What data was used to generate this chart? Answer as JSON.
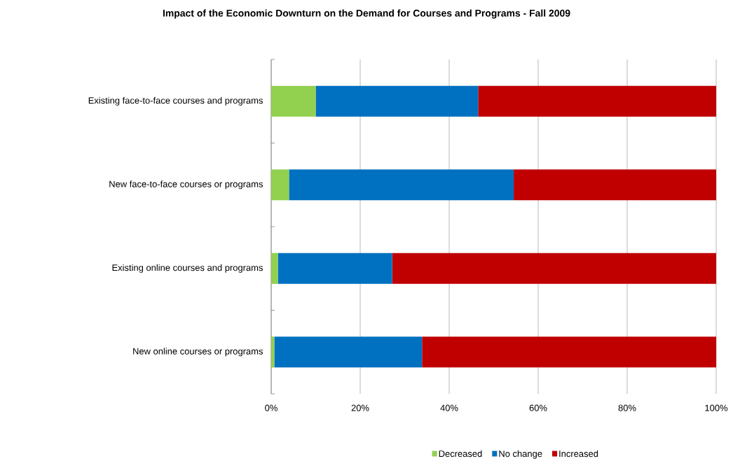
{
  "chart_data": {
    "type": "bar",
    "orientation": "horizontal",
    "stacked": true,
    "title": "Impact of the Economic Downturn on the Demand for Courses and Programs - Fall 2009",
    "categories": [
      "Existing face-to-face courses and programs",
      "New face-to-face courses or programs",
      "Existing online courses and programs",
      "New online courses or programs"
    ],
    "series": [
      {
        "name": "Decreased",
        "color": "#92d050",
        "values": [
          10,
          4,
          1.5,
          0.7
        ]
      },
      {
        "name": "No change",
        "color": "#0070c0",
        "values": [
          36.5,
          50.5,
          25.7,
          33.2
        ]
      },
      {
        "name": "Increased",
        "color": "#c00000",
        "values": [
          53.5,
          45.5,
          72.8,
          66.1
        ]
      }
    ],
    "xlim": [
      0,
      100
    ],
    "xticks": [
      {
        "value": 0,
        "label": "0%"
      },
      {
        "value": 20,
        "label": "20%"
      },
      {
        "value": 40,
        "label": "40%"
      },
      {
        "value": 60,
        "label": "60%"
      },
      {
        "value": 80,
        "label": "80%"
      },
      {
        "value": 100,
        "label": "100%"
      }
    ],
    "grid": "x",
    "legend": "bottom"
  }
}
